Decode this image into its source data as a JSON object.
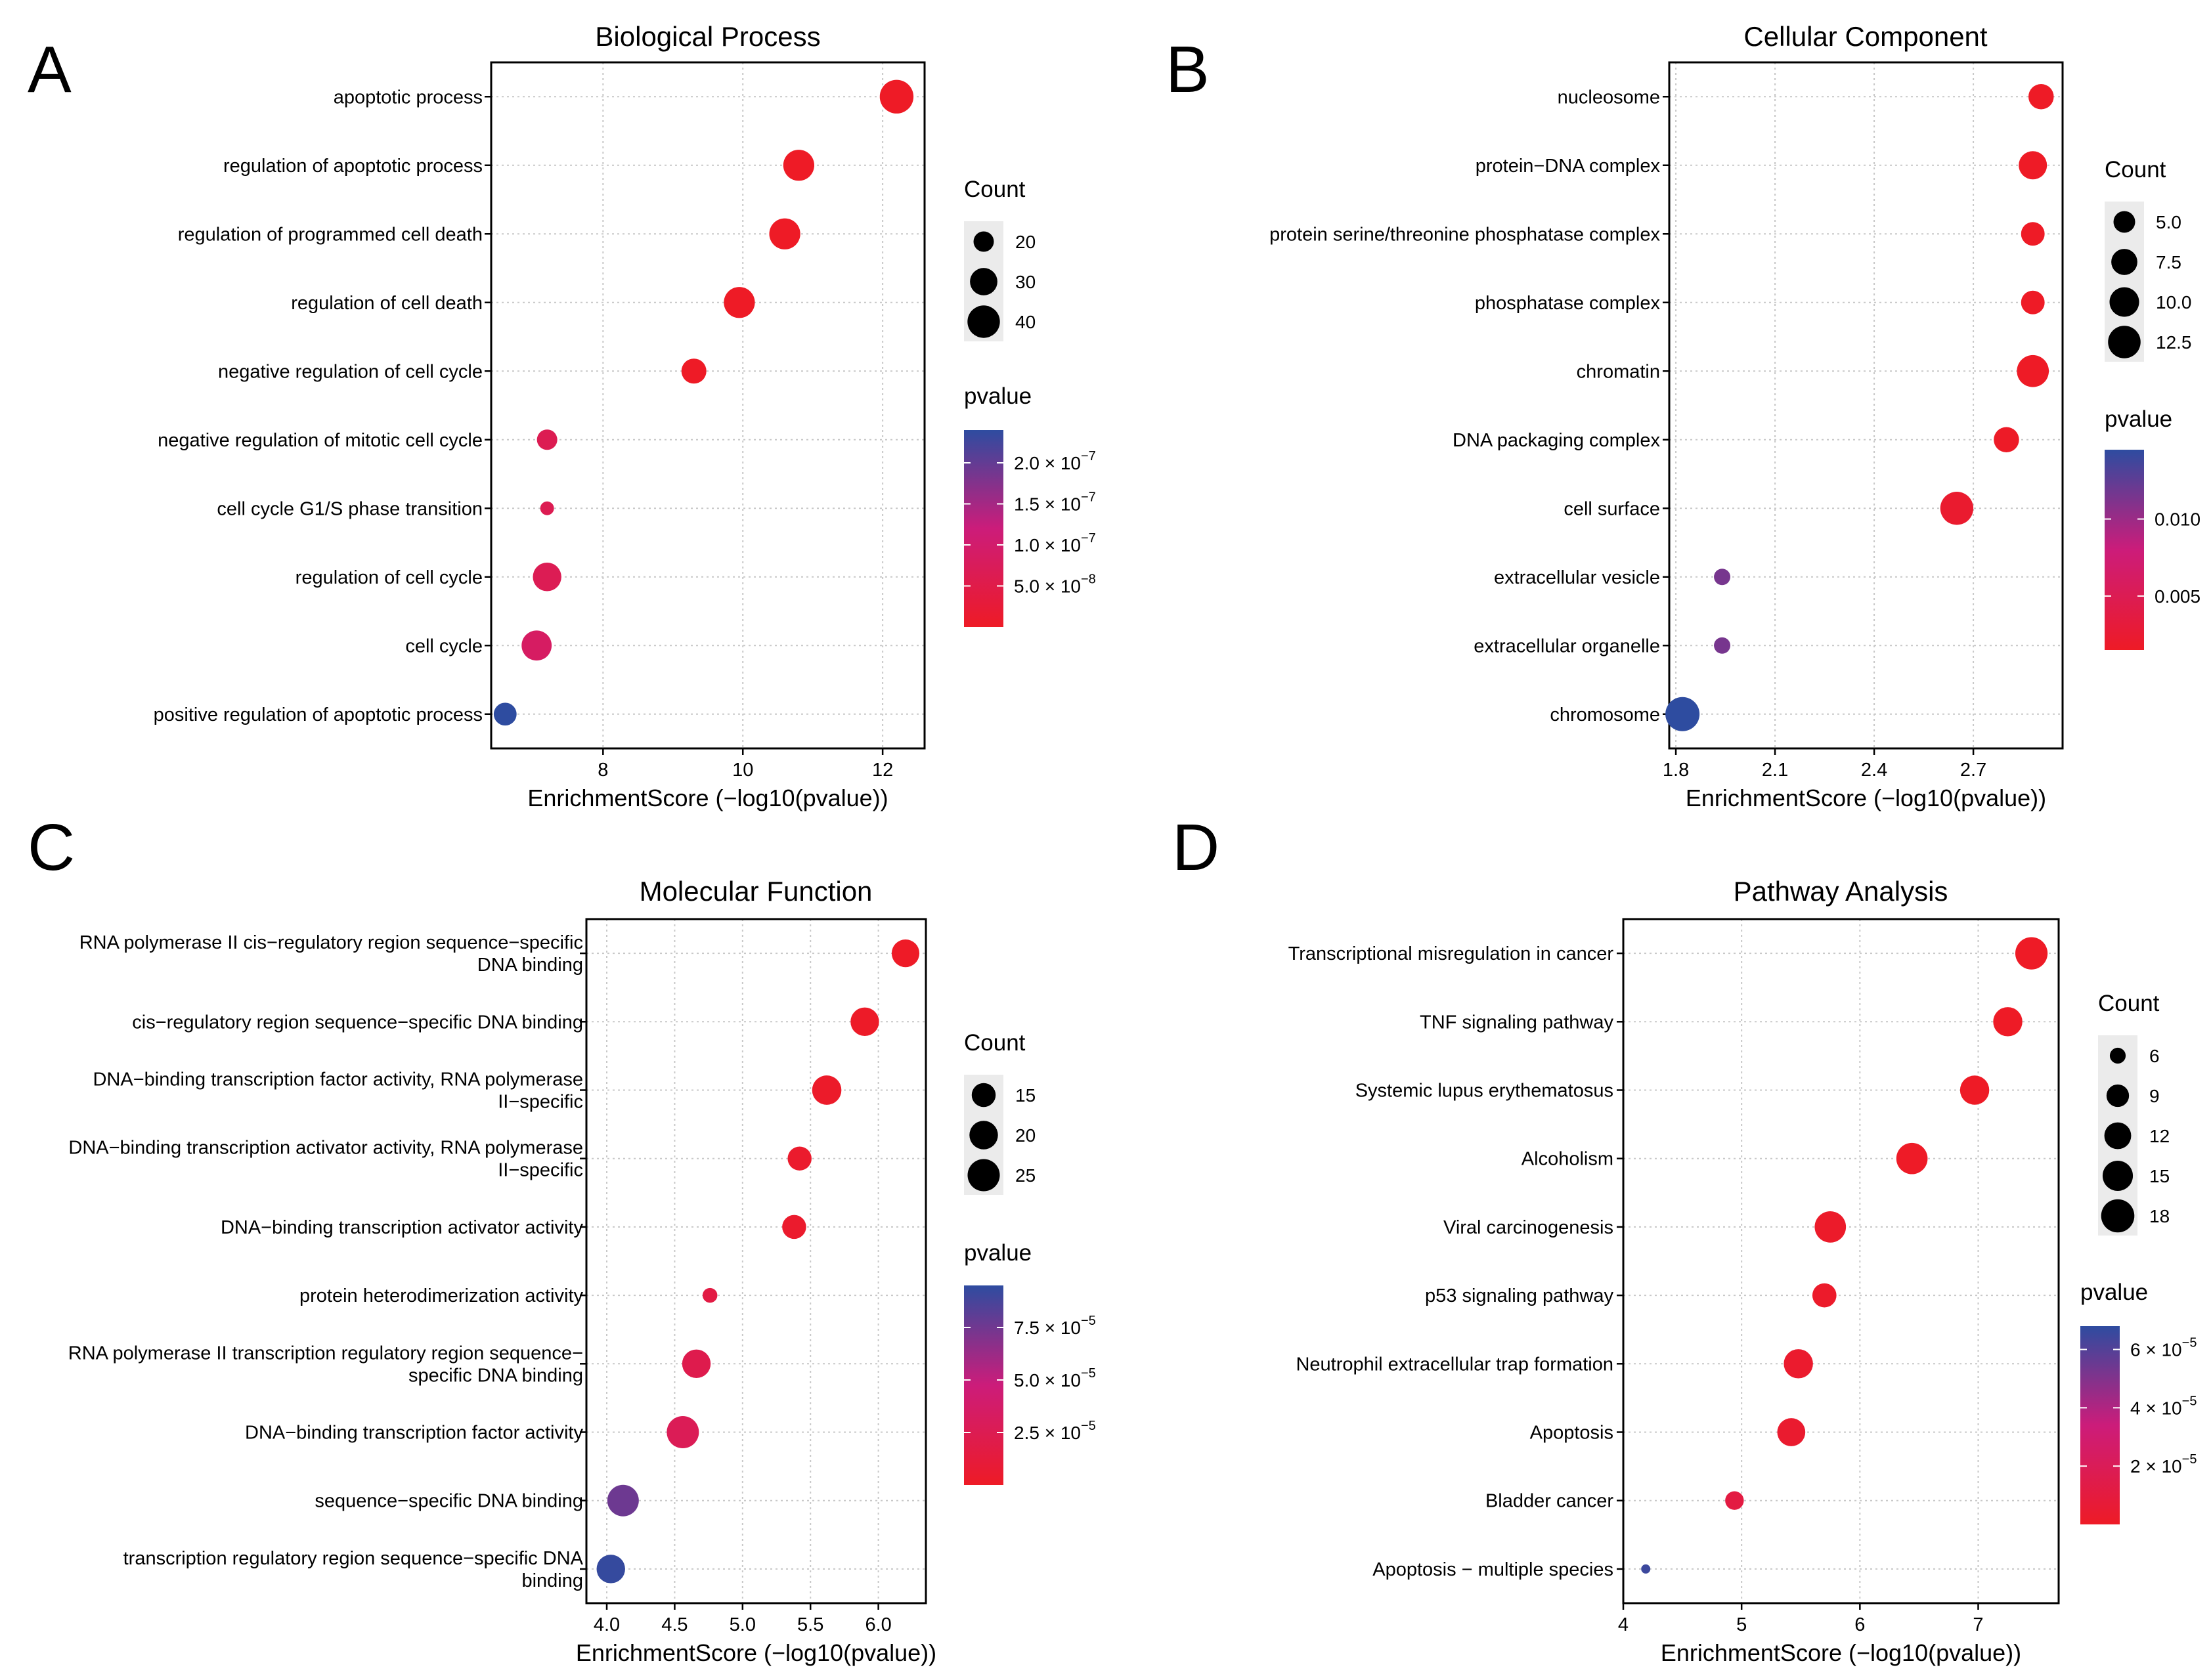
{
  "chart_data": [
    {
      "type": "scatter",
      "panel_letter": "A",
      "title": "Biological Process",
      "xlabel": "EnrichmentScore (−log10(pvalue))",
      "xlim": [
        6.4,
        12.6
      ],
      "xticks": [
        8,
        10,
        12
      ],
      "grid": true,
      "legend_count_title": "Count",
      "legend_pvalue_title": "pvalue",
      "count_range": [
        14,
        44
      ],
      "count_legend": [
        {
          "value": 20,
          "label": "20"
        },
        {
          "value": 30,
          "label": "30"
        },
        {
          "value": 40,
          "label": "40"
        }
      ],
      "pvalue_range": [
        0,
        2.4e-07
      ],
      "pvalue_legend": [
        {
          "value": 2e-07,
          "mant": "2.0",
          "exp": "−7"
        },
        {
          "value": 1.5e-07,
          "mant": "1.5",
          "exp": "−7"
        },
        {
          "value": 1e-07,
          "mant": "1.0",
          "exp": "−7"
        },
        {
          "value": 5e-08,
          "mant": "5.0",
          "exp": "−8"
        }
      ],
      "points": [
        {
          "term": [
            "apoptotic process"
          ],
          "x": 12.2,
          "count": 43,
          "pvalue": 1e-12
        },
        {
          "term": [
            "regulation of apoptotic process"
          ],
          "x": 10.8,
          "count": 37,
          "pvalue": 2e-11
        },
        {
          "term": [
            "regulation of programmed cell death"
          ],
          "x": 10.6,
          "count": 37,
          "pvalue": 3e-11
        },
        {
          "term": [
            "regulation of cell death"
          ],
          "x": 9.95,
          "count": 37,
          "pvalue": 1e-10
        },
        {
          "term": [
            "negative regulation of cell cycle"
          ],
          "x": 9.3,
          "count": 26,
          "pvalue": 5e-10
        },
        {
          "term": [
            "negative regulation of mitotic cell cycle"
          ],
          "x": 7.2,
          "count": 20,
          "pvalue": 6.3e-08
        },
        {
          "term": [
            "cell cycle G1/S phase transition"
          ],
          "x": 7.2,
          "count": 15,
          "pvalue": 6.3e-08
        },
        {
          "term": [
            "regulation of cell cycle"
          ],
          "x": 7.2,
          "count": 32,
          "pvalue": 6.5e-08
        },
        {
          "term": [
            "cell cycle"
          ],
          "x": 7.05,
          "count": 35,
          "pvalue": 8.5e-08
        },
        {
          "term": [
            "positive regulation of apoptotic process"
          ],
          "x": 6.6,
          "count": 23,
          "pvalue": 2.4e-07
        }
      ]
    },
    {
      "type": "scatter",
      "panel_letter": "B",
      "title": "Cellular Component",
      "xlabel": "EnrichmentScore (−log10(pvalue))",
      "xlim": [
        1.78,
        2.97
      ],
      "xticks": [
        1.8,
        2.1,
        2.4,
        2.7
      ],
      "grid": true,
      "legend_count_title": "Count",
      "legend_pvalue_title": "pvalue",
      "count_range": [
        2,
        14
      ],
      "count_legend": [
        {
          "value": 5.0,
          "label": "5.0"
        },
        {
          "value": 7.5,
          "label": "7.5"
        },
        {
          "value": 10.0,
          "label": "10.0"
        },
        {
          "value": 12.5,
          "label": "12.5"
        }
      ],
      "pvalue_range": [
        0.0015,
        0.0145
      ],
      "pvalue_legend": [
        {
          "value": 0.01,
          "label": "0.010"
        },
        {
          "value": 0.005,
          "label": "0.005"
        }
      ],
      "points": [
        {
          "term": [
            "nucleosome"
          ],
          "x": 2.905,
          "count": 7,
          "pvalue": 0.00125
        },
        {
          "term": [
            "protein−DNA complex"
          ],
          "x": 2.88,
          "count": 9,
          "pvalue": 0.0013
        },
        {
          "term": [
            "protein serine/threonine phosphatase complex"
          ],
          "x": 2.88,
          "count": 6,
          "pvalue": 0.0013
        },
        {
          "term": [
            "phosphatase complex"
          ],
          "x": 2.88,
          "count": 6,
          "pvalue": 0.0013
        },
        {
          "term": [
            "chromatin"
          ],
          "x": 2.88,
          "count": 12,
          "pvalue": 0.0013
        },
        {
          "term": [
            "DNA packaging complex"
          ],
          "x": 2.8,
          "count": 7,
          "pvalue": 0.0016
        },
        {
          "term": [
            "cell surface"
          ],
          "x": 2.65,
          "count": 13,
          "pvalue": 0.0022
        },
        {
          "term": [
            "extracellular vesicle"
          ],
          "x": 1.94,
          "count": 3,
          "pvalue": 0.0115
        },
        {
          "term": [
            "extracellular organelle"
          ],
          "x": 1.94,
          "count": 3,
          "pvalue": 0.0115
        },
        {
          "term": [
            "chromosome"
          ],
          "x": 1.82,
          "count": 14,
          "pvalue": 0.0145
        }
      ]
    },
    {
      "type": "scatter",
      "panel_letter": "C",
      "title": "Molecular Function",
      "xlabel": "EnrichmentScore (−log10(pvalue))",
      "xlim": [
        3.85,
        6.35
      ],
      "xticks": [
        4.0,
        4.5,
        5.0,
        5.5,
        6.0
      ],
      "grid": true,
      "legend_count_title": "Count",
      "legend_pvalue_title": "pvalue",
      "count_range": [
        8,
        28
      ],
      "count_legend": [
        {
          "value": 15,
          "label": "15"
        },
        {
          "value": 20,
          "label": "20"
        },
        {
          "value": 25,
          "label": "25"
        }
      ],
      "pvalue_range": [
        0,
        9.5e-05
      ],
      "pvalue_legend": [
        {
          "value": 7.5e-05,
          "mant": "7.5",
          "exp": "−5"
        },
        {
          "value": 5e-05,
          "mant": "5.0",
          "exp": "−5"
        },
        {
          "value": 2.5e-05,
          "mant": "2.5",
          "exp": "−5"
        }
      ],
      "points": [
        {
          "term": [
            "RNA polymerase II cis−regulatory region sequence−specific",
            "DNA binding"
          ],
          "x": 6.2,
          "count": 19,
          "pvalue": 6e-07
        },
        {
          "term": [
            "cis−regulatory region sequence−specific DNA binding"
          ],
          "x": 5.9,
          "count": 20,
          "pvalue": 1.3e-06
        },
        {
          "term": [
            "DNA−binding transcription factor activity, RNA polymerase",
            "II−specific"
          ],
          "x": 5.62,
          "count": 21,
          "pvalue": 2.4e-06
        },
        {
          "term": [
            "DNA−binding transcription activator activity, RNA polymerase",
            "II−specific"
          ],
          "x": 5.42,
          "count": 15,
          "pvalue": 3.8e-06
        },
        {
          "term": [
            "DNA−binding transcription activator activity"
          ],
          "x": 5.38,
          "count": 15,
          "pvalue": 4.2e-06
        },
        {
          "term": [
            "protein heterodimerization activity"
          ],
          "x": 4.76,
          "count": 9,
          "pvalue": 1.7e-05
        },
        {
          "term": [
            "RNA polymerase II transcription regulatory region sequence−",
            "specific DNA binding"
          ],
          "x": 4.66,
          "count": 20,
          "pvalue": 2.2e-05
        },
        {
          "term": [
            "DNA−binding transcription factor activity"
          ],
          "x": 4.56,
          "count": 25,
          "pvalue": 2.7e-05
        },
        {
          "term": [
            "sequence−specific DNA binding"
          ],
          "x": 4.12,
          "count": 24,
          "pvalue": 7.6e-05
        },
        {
          "term": [
            "transcription regulatory region sequence−specific DNA",
            "binding"
          ],
          "x": 4.03,
          "count": 20,
          "pvalue": 9.3e-05
        }
      ]
    },
    {
      "type": "scatter",
      "panel_letter": "D",
      "title": "Pathway Analysis",
      "xlabel": "EnrichmentScore (−log10(pvalue))",
      "xlim": [
        4.0,
        7.68
      ],
      "xticks": [
        4,
        5,
        6,
        7
      ],
      "grid": true,
      "legend_count_title": "Count",
      "legend_pvalue_title": "pvalue",
      "count_range": [
        5,
        19
      ],
      "count_legend": [
        {
          "value": 6,
          "label": "6"
        },
        {
          "value": 9,
          "label": "9"
        },
        {
          "value": 12,
          "label": "12"
        },
        {
          "value": 15,
          "label": "15"
        },
        {
          "value": 18,
          "label": "18"
        }
      ],
      "pvalue_range": [
        0,
        6.8e-05
      ],
      "pvalue_legend": [
        {
          "value": 6e-05,
          "mant": "6",
          "exp": "−5"
        },
        {
          "value": 4e-05,
          "mant": "4",
          "exp": "−5"
        },
        {
          "value": 2e-05,
          "mant": "2",
          "exp": "−5"
        }
      ],
      "points": [
        {
          "term": [
            "Transcriptional misregulation in cancer"
          ],
          "x": 7.45,
          "count": 17,
          "pvalue": 3.5e-08
        },
        {
          "term": [
            "TNF signaling pathway"
          ],
          "x": 7.25,
          "count": 14,
          "pvalue": 5.6e-08
        },
        {
          "term": [
            "Systemic lupus erythematosus"
          ],
          "x": 6.97,
          "count": 14,
          "pvalue": 1.1e-07
        },
        {
          "term": [
            "Alcoholism"
          ],
          "x": 6.44,
          "count": 16,
          "pvalue": 3.6e-07
        },
        {
          "term": [
            "Viral carcinogenesis"
          ],
          "x": 5.75,
          "count": 16,
          "pvalue": 1.8e-06
        },
        {
          "term": [
            "p53 signaling pathway"
          ],
          "x": 5.7,
          "count": 10,
          "pvalue": 2e-06
        },
        {
          "term": [
            "Neutrophil extracellular trap formation"
          ],
          "x": 5.48,
          "count": 14,
          "pvalue": 3.3e-06
        },
        {
          "term": [
            "Apoptosis"
          ],
          "x": 5.42,
          "count": 13,
          "pvalue": 3.8e-06
        },
        {
          "term": [
            "Bladder cancer"
          ],
          "x": 4.94,
          "count": 7,
          "pvalue": 1.15e-05
        },
        {
          "term": [
            "Apoptosis − multiple species"
          ],
          "x": 4.19,
          "count": 5,
          "pvalue": 6.5e-05
        }
      ]
    }
  ]
}
